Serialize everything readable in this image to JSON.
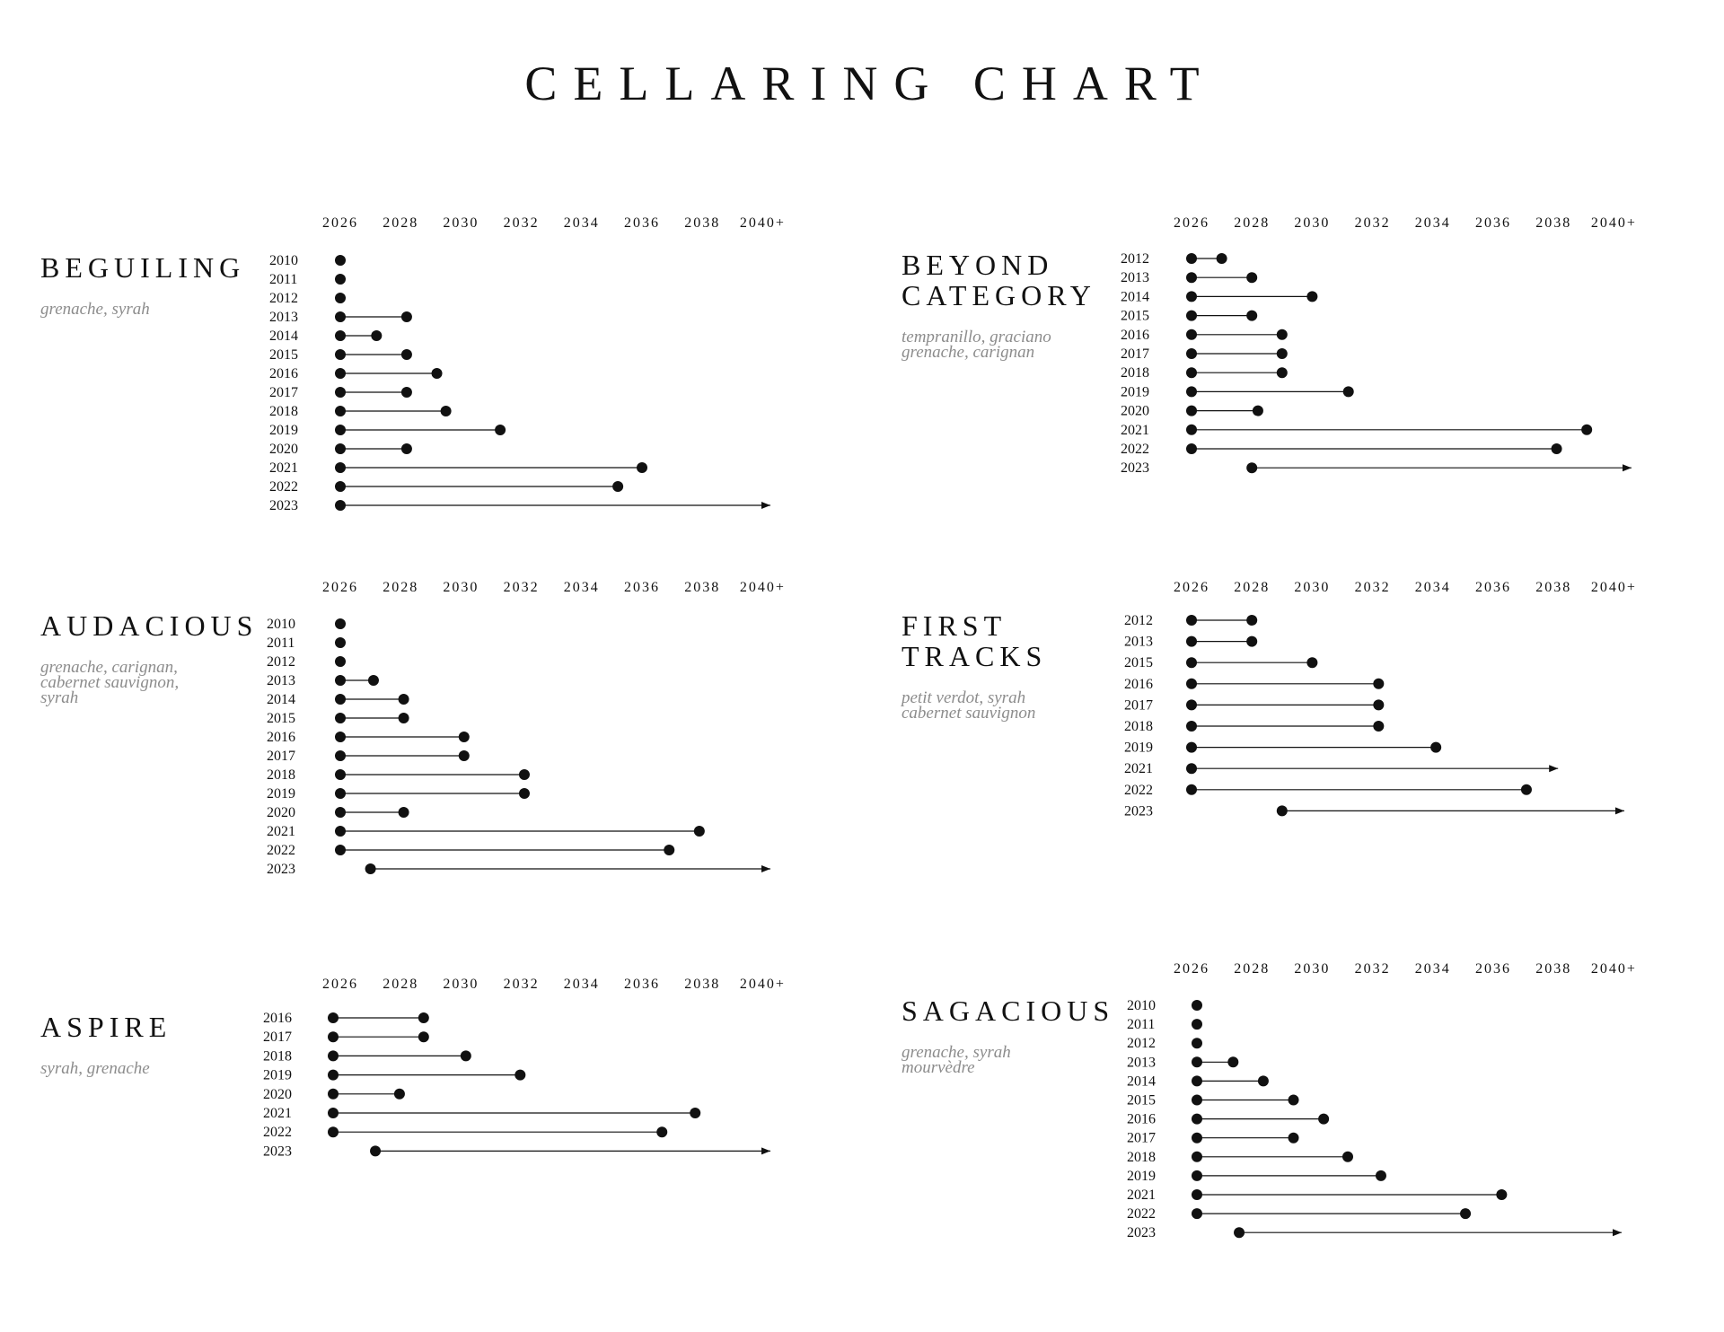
{
  "title": "CELLARING CHART",
  "colors": {
    "ink": "#111111",
    "grape_text": "#8c8c8c",
    "background": "#ffffff"
  },
  "chart_data": [
    {
      "type": "range",
      "title": "BEGUILING",
      "subtitle": [
        "grenache, syrah"
      ],
      "x_ticks": [
        "2026",
        "2028",
        "2030",
        "2032",
        "2034",
        "2036",
        "2038",
        "2040+"
      ],
      "xlim": [
        2026,
        2040
      ],
      "rows": [
        {
          "vintage": "2010",
          "from": 2026,
          "to": 2026
        },
        {
          "vintage": "2011",
          "from": 2026,
          "to": 2026
        },
        {
          "vintage": "2012",
          "from": 2026,
          "to": 2026
        },
        {
          "vintage": "2013",
          "from": 2026,
          "to": 2028.2
        },
        {
          "vintage": "2014",
          "from": 2026,
          "to": 2027.2
        },
        {
          "vintage": "2015",
          "from": 2026,
          "to": 2028.2
        },
        {
          "vintage": "2016",
          "from": 2026,
          "to": 2029.2
        },
        {
          "vintage": "2017",
          "from": 2026,
          "to": 2028.2
        },
        {
          "vintage": "2018",
          "from": 2026,
          "to": 2029.5
        },
        {
          "vintage": "2019",
          "from": 2026,
          "to": 2031.3
        },
        {
          "vintage": "2020",
          "from": 2026,
          "to": 2028.2
        },
        {
          "vintage": "2021",
          "from": 2026,
          "to": 2036
        },
        {
          "vintage": "2022",
          "from": 2026,
          "to": 2035.2
        },
        {
          "vintage": "2023",
          "from": 2026,
          "to": "2040+"
        }
      ]
    },
    {
      "type": "range",
      "title": "BEYOND CATEGORY",
      "subtitle": [
        "tempranillo, graciano",
        "grenache, carignan"
      ],
      "x_ticks": [
        "2026",
        "2028",
        "2030",
        "2032",
        "2034",
        "2036",
        "2038",
        "2040+"
      ],
      "xlim": [
        2026,
        2040
      ],
      "rows": [
        {
          "vintage": "2012",
          "from": 2026,
          "to": 2027
        },
        {
          "vintage": "2013",
          "from": 2026,
          "to": 2028
        },
        {
          "vintage": "2014",
          "from": 2026,
          "to": 2030
        },
        {
          "vintage": "2015",
          "from": 2026,
          "to": 2028
        },
        {
          "vintage": "2016",
          "from": 2026,
          "to": 2029
        },
        {
          "vintage": "2017",
          "from": 2026,
          "to": 2029
        },
        {
          "vintage": "2018",
          "from": 2026,
          "to": 2029
        },
        {
          "vintage": "2019",
          "from": 2026,
          "to": 2031.2
        },
        {
          "vintage": "2020",
          "from": 2026,
          "to": 2028.2
        },
        {
          "vintage": "2021",
          "from": 2026,
          "to": 2039.1
        },
        {
          "vintage": "2022",
          "from": 2026,
          "to": 2038.1
        },
        {
          "vintage": "2023",
          "from": 2028,
          "to": "2040+"
        }
      ]
    },
    {
      "type": "range",
      "title": "AUDACIOUS",
      "subtitle": [
        "grenache, carignan,",
        "cabernet sauvignon,",
        "syrah"
      ],
      "x_ticks": [
        "2026",
        "2028",
        "2030",
        "2032",
        "2034",
        "2036",
        "2038",
        "2040+"
      ],
      "xlim": [
        2026,
        2040
      ],
      "rows": [
        {
          "vintage": "2010",
          "from": 2026,
          "to": 2026
        },
        {
          "vintage": "2011",
          "from": 2026,
          "to": 2026
        },
        {
          "vintage": "2012",
          "from": 2026,
          "to": 2026
        },
        {
          "vintage": "2013",
          "from": 2026,
          "to": 2027.1
        },
        {
          "vintage": "2014",
          "from": 2026,
          "to": 2028.1
        },
        {
          "vintage": "2015",
          "from": 2026,
          "to": 2028.1
        },
        {
          "vintage": "2016",
          "from": 2026,
          "to": 2030.1
        },
        {
          "vintage": "2017",
          "from": 2026,
          "to": 2030.1
        },
        {
          "vintage": "2018",
          "from": 2026,
          "to": 2032.1
        },
        {
          "vintage": "2019",
          "from": 2026,
          "to": 2032.1
        },
        {
          "vintage": "2020",
          "from": 2026,
          "to": 2028.1
        },
        {
          "vintage": "2021",
          "from": 2026,
          "to": 2037.9
        },
        {
          "vintage": "2022",
          "from": 2026,
          "to": 2036.9
        },
        {
          "vintage": "2023",
          "from": 2027,
          "to": "2040+"
        }
      ]
    },
    {
      "type": "range",
      "title": "FIRST TRACKS",
      "subtitle": [
        "petit verdot, syrah",
        "cabernet sauvignon"
      ],
      "x_ticks": [
        "2026",
        "2028",
        "2030",
        "2032",
        "2034",
        "2036",
        "2038",
        "2040+"
      ],
      "xlim": [
        2026,
        2040
      ],
      "rows": [
        {
          "vintage": "2012",
          "from": 2026,
          "to": 2028
        },
        {
          "vintage": "2013",
          "from": 2026,
          "to": 2028
        },
        {
          "vintage": "2015",
          "from": 2026,
          "to": 2030
        },
        {
          "vintage": "2016",
          "from": 2026,
          "to": 2032.2
        },
        {
          "vintage": "2017",
          "from": 2026,
          "to": 2032.2
        },
        {
          "vintage": "2018",
          "from": 2026,
          "to": 2032.2
        },
        {
          "vintage": "2019",
          "from": 2026,
          "to": 2034.1
        },
        {
          "vintage": "2021",
          "from": 2026,
          "to": "2038+"
        },
        {
          "vintage": "2022",
          "from": 2026,
          "to": 2037.1
        },
        {
          "vintage": "2023",
          "from": 2029,
          "to": "2040+"
        }
      ]
    },
    {
      "type": "range",
      "title": "ASPIRE",
      "subtitle": [
        "syrah, grenache"
      ],
      "x_ticks": [
        "2026",
        "2028",
        "2030",
        "2032",
        "2034",
        "2036",
        "2038",
        "2040+"
      ],
      "xlim": [
        2026,
        2040
      ],
      "rows": [
        {
          "vintage": "2016",
          "from": 2026,
          "to": 2029
        },
        {
          "vintage": "2017",
          "from": 2026,
          "to": 2029
        },
        {
          "vintage": "2018",
          "from": 2026,
          "to": 2030.4
        },
        {
          "vintage": "2019",
          "from": 2026,
          "to": 2032.2
        },
        {
          "vintage": "2020",
          "from": 2026,
          "to": 2028.2
        },
        {
          "vintage": "2021",
          "from": 2026,
          "to": 2038
        },
        {
          "vintage": "2022",
          "from": 2026,
          "to": 2036.9
        },
        {
          "vintage": "2023",
          "from": 2027.4,
          "to": "2040+"
        }
      ]
    },
    {
      "type": "range",
      "title": "SAGACIOUS",
      "subtitle": [
        "grenache, syrah",
        "mourvèdre"
      ],
      "x_ticks": [
        "2026",
        "2028",
        "2030",
        "2032",
        "2034",
        "2036",
        "2038",
        "2040+"
      ],
      "xlim": [
        2026,
        2040
      ],
      "rows": [
        {
          "vintage": "2010",
          "from": 2026,
          "to": 2026
        },
        {
          "vintage": "2011",
          "from": 2026,
          "to": 2026
        },
        {
          "vintage": "2012",
          "from": 2026,
          "to": 2026
        },
        {
          "vintage": "2013",
          "from": 2026,
          "to": 2027.2
        },
        {
          "vintage": "2014",
          "from": 2026,
          "to": 2028.2
        },
        {
          "vintage": "2015",
          "from": 2026,
          "to": 2029.2
        },
        {
          "vintage": "2016",
          "from": 2026,
          "to": 2030.2
        },
        {
          "vintage": "2017",
          "from": 2026,
          "to": 2029.2
        },
        {
          "vintage": "2018",
          "from": 2026,
          "to": 2031
        },
        {
          "vintage": "2019",
          "from": 2026,
          "to": 2032.1
        },
        {
          "vintage": "2021",
          "from": 2026,
          "to": 2036.1
        },
        {
          "vintage": "2022",
          "from": 2026,
          "to": 2034.9
        },
        {
          "vintage": "2023",
          "from": 2027.4,
          "to": "2040+"
        }
      ]
    }
  ]
}
